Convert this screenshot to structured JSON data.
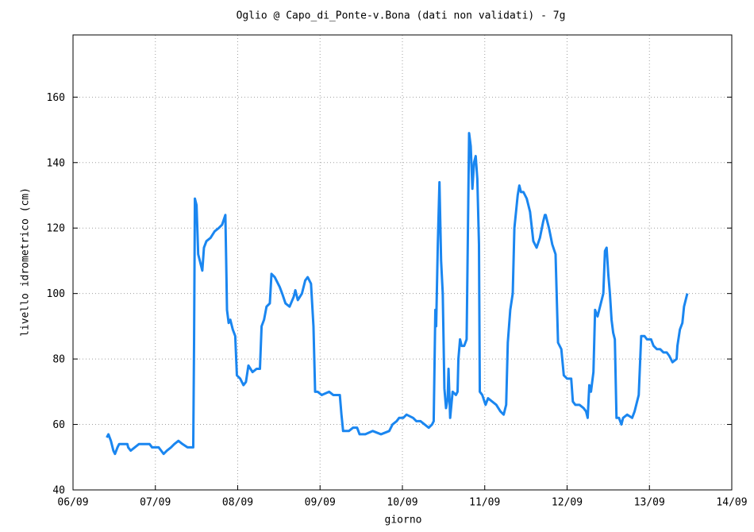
{
  "chart_data": {
    "type": "line",
    "title": "Oglio @ Capo_di_Ponte-v.Bona (dati non validati) - 7g",
    "x_label": "giorno",
    "y_label": "livello idrometrico (cm)",
    "color": "#1a86f0",
    "grid": true,
    "xlim": [
      6,
      14
    ],
    "ylim": [
      40,
      179
    ],
    "xticks": [
      {
        "value": 6,
        "label": "06/09"
      },
      {
        "value": 7,
        "label": "07/09"
      },
      {
        "value": 8,
        "label": "08/09"
      },
      {
        "value": 9,
        "label": "09/09"
      },
      {
        "value": 10,
        "label": "10/09"
      },
      {
        "value": 11,
        "label": "11/09"
      },
      {
        "value": 12,
        "label": "12/09"
      },
      {
        "value": 13,
        "label": "13/09"
      },
      {
        "value": 14,
        "label": "14/09"
      }
    ],
    "yticks": [
      40,
      60,
      80,
      100,
      120,
      140,
      160
    ],
    "x": [
      6.41,
      6.43,
      6.46,
      6.49,
      6.51,
      6.54,
      6.56,
      6.66,
      6.67,
      6.7,
      6.75,
      6.8,
      6.93,
      6.96,
      7.04,
      7.07,
      7.1,
      7.14,
      7.19,
      7.23,
      7.28,
      7.33,
      7.39,
      7.46,
      7.47,
      7.48,
      7.5,
      7.52,
      7.55,
      7.57,
      7.59,
      7.62,
      7.67,
      7.72,
      7.77,
      7.81,
      7.85,
      7.86,
      7.87,
      7.89,
      7.91,
      7.94,
      7.97,
      7.99,
      8.03,
      8.07,
      8.1,
      8.13,
      8.18,
      8.23,
      8.27,
      8.29,
      8.32,
      8.35,
      8.39,
      8.41,
      8.45,
      8.47,
      8.51,
      8.54,
      8.58,
      8.63,
      8.68,
      8.7,
      8.73,
      8.78,
      8.82,
      8.85,
      8.89,
      8.92,
      8.94,
      8.97,
      9.02,
      9.11,
      9.16,
      9.24,
      9.26,
      9.28,
      9.35,
      9.4,
      9.45,
      9.48,
      9.55,
      9.64,
      9.74,
      9.84,
      9.88,
      9.93,
      9.96,
      10.01,
      10.05,
      10.13,
      10.17,
      10.22,
      10.27,
      10.32,
      10.36,
      10.38,
      10.4,
      10.41,
      10.43,
      10.45,
      10.47,
      10.49,
      10.51,
      10.53,
      10.55,
      10.56,
      10.58,
      10.61,
      10.65,
      10.67,
      10.68,
      10.7,
      10.72,
      10.75,
      10.78,
      10.81,
      10.83,
      10.85,
      10.87,
      10.89,
      10.91,
      10.93,
      10.94,
      10.97,
      11.01,
      11.04,
      11.09,
      11.14,
      11.19,
      11.23,
      11.26,
      11.28,
      11.31,
      11.34,
      11.36,
      11.38,
      11.4,
      11.42,
      11.44,
      11.47,
      11.51,
      11.55,
      11.59,
      11.63,
      11.67,
      11.71,
      11.73,
      11.74,
      11.78,
      11.82,
      11.86,
      11.89,
      11.93,
      11.96,
      12.0,
      12.05,
      12.07,
      12.1,
      12.15,
      12.2,
      12.23,
      12.25,
      12.27,
      12.29,
      12.32,
      12.34,
      12.37,
      12.4,
      12.44,
      12.46,
      12.48,
      12.5,
      12.52,
      12.54,
      12.56,
      12.58,
      12.6,
      12.63,
      12.66,
      12.68,
      12.73,
      12.79,
      12.82,
      12.87,
      12.9,
      12.94,
      12.97,
      13.02,
      13.05,
      13.09,
      13.13,
      13.17,
      13.21,
      13.24,
      13.28,
      13.33,
      13.34,
      13.37,
      13.4,
      13.42,
      13.46
    ],
    "values": [
      56,
      57,
      55,
      52,
      51,
      53,
      54,
      54,
      53,
      52,
      53,
      54,
      54,
      53,
      53,
      52,
      51,
      52,
      53,
      54,
      55,
      54,
      53,
      53,
      85,
      129,
      127,
      112,
      109,
      107,
      114,
      116,
      117,
      119,
      120,
      121,
      124,
      110,
      95,
      91,
      92,
      89,
      87,
      75,
      74,
      72,
      73,
      78,
      76,
      77,
      77,
      90,
      92,
      96,
      97,
      106,
      105,
      104,
      102,
      100,
      97,
      96,
      99,
      101,
      98,
      100,
      104,
      105,
      103,
      90,
      70,
      70,
      69,
      70,
      69,
      69,
      63,
      58,
      58,
      59,
      59,
      57,
      57,
      58,
      57,
      58,
      60,
      61,
      62,
      62,
      63,
      62,
      61,
      61,
      60,
      59,
      60,
      61,
      95,
      90,
      115,
      134,
      110,
      100,
      71,
      65,
      68,
      77,
      62,
      70,
      69,
      70,
      80,
      86,
      84,
      84,
      86,
      149,
      145,
      132,
      140,
      142,
      135,
      115,
      70,
      69,
      66,
      68,
      67,
      66,
      64,
      63,
      66,
      85,
      95,
      100,
      120,
      125,
      130,
      133,
      131,
      131,
      129,
      125,
      116,
      114,
      117,
      122,
      124,
      124,
      120,
      115,
      112,
      85,
      83,
      75,
      74,
      74,
      67,
      66,
      66,
      65,
      64,
      62,
      72,
      70,
      76,
      95,
      93,
      96,
      100,
      113,
      114,
      106,
      100,
      92,
      88,
      86,
      62,
      62,
      60,
      62,
      63,
      62,
      64,
      69,
      87,
      87,
      86,
      86,
      84,
      83,
      83,
      82,
      82,
      81,
      79,
      80,
      84,
      89,
      91,
      96,
      100
    ]
  }
}
